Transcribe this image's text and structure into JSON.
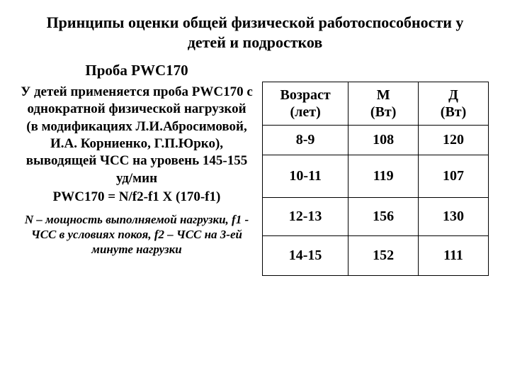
{
  "title": "Принципы оценки общей физической работоспособности у детей и подростков",
  "subtitle": "Проба PWC170",
  "para": "У детей применяется проба PWC170 с однократной физической нагрузкой (в модификациях Л.И.Абросимовой, И.А. Корниенко, Г.П.Юрко), выводящей ЧСС на уровень 145-155 уд/мин",
  "formula": "PWC170 = N/f2-f1 X (170-f1)",
  "note": "N – мощность выполняемой нагрузки, f1  - ЧСС в условиях покоя, f2 – ЧСС на 3-ей минуте нагрузки",
  "table": {
    "columns": [
      {
        "line1": "Возраст",
        "line2": "(лет)"
      },
      {
        "line1": "М",
        "line2": "(Вт)"
      },
      {
        "line1": "Д",
        "line2": "(Вт)"
      }
    ],
    "rows": [
      [
        "8-9",
        "108",
        "120"
      ],
      [
        "10-11",
        "119",
        "107"
      ],
      [
        "12-13",
        "156",
        "130"
      ],
      [
        "14-15",
        "152",
        "111"
      ]
    ],
    "border_color": "#000000",
    "cell_font_size": 20,
    "col_widths_pct": [
      38,
      31,
      31
    ]
  },
  "colors": {
    "background": "#ffffff",
    "text": "#000000"
  },
  "typography": {
    "family": "Times New Roman",
    "title_size": 22,
    "body_size": 19,
    "note_size": 17
  }
}
